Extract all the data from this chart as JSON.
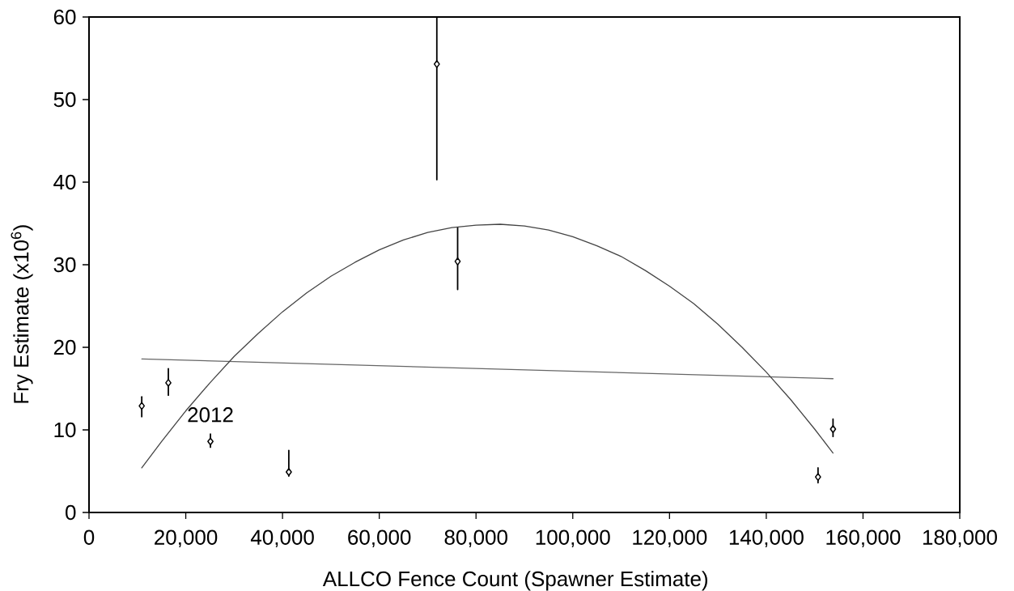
{
  "chart_data": {
    "type": "scatter",
    "xlabel": "ALLCO Fence Count (Spawner Estimate)",
    "ylabel": "Fry Estimate (x10$^{6}$)",
    "xlim": [
      0,
      180000
    ],
    "ylim": [
      0,
      60
    ],
    "xticks": [
      0,
      {
        "value": 20000,
        "label": "20,000"
      },
      {
        "value": 40000,
        "label": "40,000"
      },
      {
        "value": 60000,
        "label": "60,000"
      },
      {
        "value": 80000,
        "label": "80,000"
      },
      {
        "value": 100000,
        "label": "100,000"
      },
      {
        "value": 120000,
        "label": "120,000"
      },
      {
        "value": 140000,
        "label": "140,000"
      },
      {
        "value": 160000,
        "label": "160,000"
      },
      {
        "value": 180000,
        "label": "180,000"
      }
    ],
    "yticks": [
      0,
      10,
      20,
      30,
      40,
      50,
      60
    ],
    "marker": "diamond",
    "series": [
      {
        "color": "#000000",
        "x": [
          10900,
          16400,
          25100,
          41300,
          71900,
          76200,
          150700,
          153800
        ],
        "values": [
          12.9,
          15.7,
          8.6,
          4.9,
          54.3,
          30.4,
          4.3,
          10.1
        ],
        "errors": [
          [
            11.6,
            14.0
          ],
          [
            14.2,
            17.4
          ],
          [
            7.9,
            9.5
          ],
          [
            4.4,
            7.5
          ],
          [
            40.3,
            60
          ],
          [
            27.0,
            34.5
          ],
          [
            3.6,
            5.4
          ],
          [
            9.2,
            11.3
          ]
        ]
      },
      {
        "type": "line",
        "color": "#666666",
        "marker": "none",
        "x": [
          10900,
          153800
        ],
        "values": [
          18.6,
          16.2
        ]
      },
      {
        "type": "line",
        "color": "#444444",
        "marker": "none",
        "x": [
          10900,
          15000,
          20000,
          25000,
          30000,
          35000,
          40000,
          45000,
          50000,
          55000,
          60000,
          65000,
          70000,
          75000,
          80000,
          85000,
          90000,
          95000,
          100000,
          105000,
          110000,
          115000,
          120000,
          125000,
          130000,
          135000,
          140000,
          145000,
          150000,
          153800
        ],
        "values": [
          5.4,
          8.6,
          12.3,
          15.7,
          18.9,
          21.7,
          24.3,
          26.6,
          28.6,
          30.3,
          31.8,
          33.0,
          33.9,
          34.5,
          34.8,
          34.9,
          34.7,
          34.2,
          33.4,
          32.3,
          31.0,
          29.3,
          27.4,
          25.3,
          22.8,
          20.0,
          17.0,
          13.7,
          10.1,
          7.2
        ]
      }
    ],
    "annotations": [
      {
        "text": "2012",
        "x": 25100,
        "y": 8.6
      }
    ]
  }
}
